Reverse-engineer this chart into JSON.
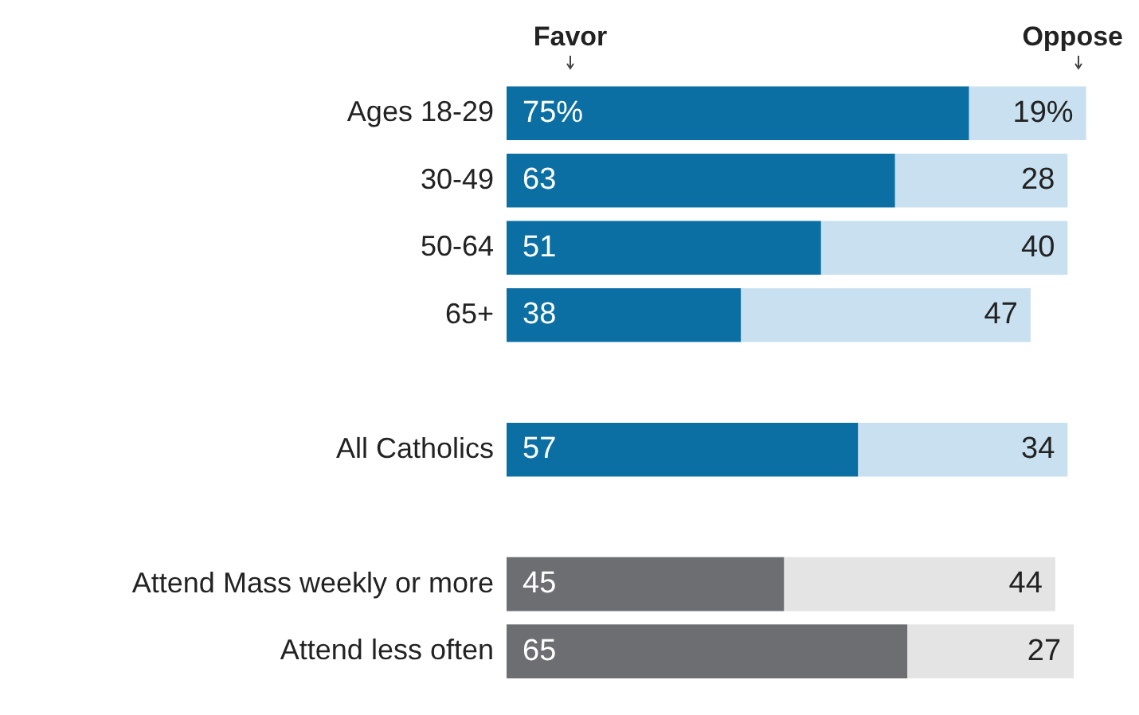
{
  "chart_data": {
    "type": "bar",
    "orientation": "horizontal",
    "stacked": true,
    "legend": false,
    "tick_labels": "y",
    "data_labels": true,
    "categories": [
      "Ages 18-29",
      "30-49",
      "50-64",
      "65+",
      null,
      "All Catholics",
      null,
      "Attend Mass weekly or more",
      "Attend less often"
    ],
    "series": [
      {
        "name": "Favor",
        "colors": [
          "#0b6fa4",
          "#0b6fa4",
          "#0b6fa4",
          "#0b6fa4",
          null,
          "#0b6fa4",
          null,
          "#6d6e71",
          "#6d6e71"
        ],
        "values": [
          75,
          63,
          51,
          38,
          null,
          57,
          null,
          45,
          65
        ],
        "value_labels": [
          "75%",
          "63",
          "51",
          "38",
          null,
          "57",
          null,
          "45",
          "65"
        ]
      },
      {
        "name": "Oppose",
        "colors": [
          "#c8e0f0",
          "#c8e0f0",
          "#c8e0f0",
          "#c8e0f0",
          null,
          "#c8e0f0",
          null,
          "#e4e4e4",
          "#e4e4e4"
        ],
        "values": [
          19,
          28,
          40,
          47,
          null,
          34,
          null,
          44,
          27
        ],
        "value_labels": [
          "19%",
          "28",
          "40",
          "47",
          null,
          "34",
          null,
          "44",
          "27"
        ]
      }
    ]
  }
}
